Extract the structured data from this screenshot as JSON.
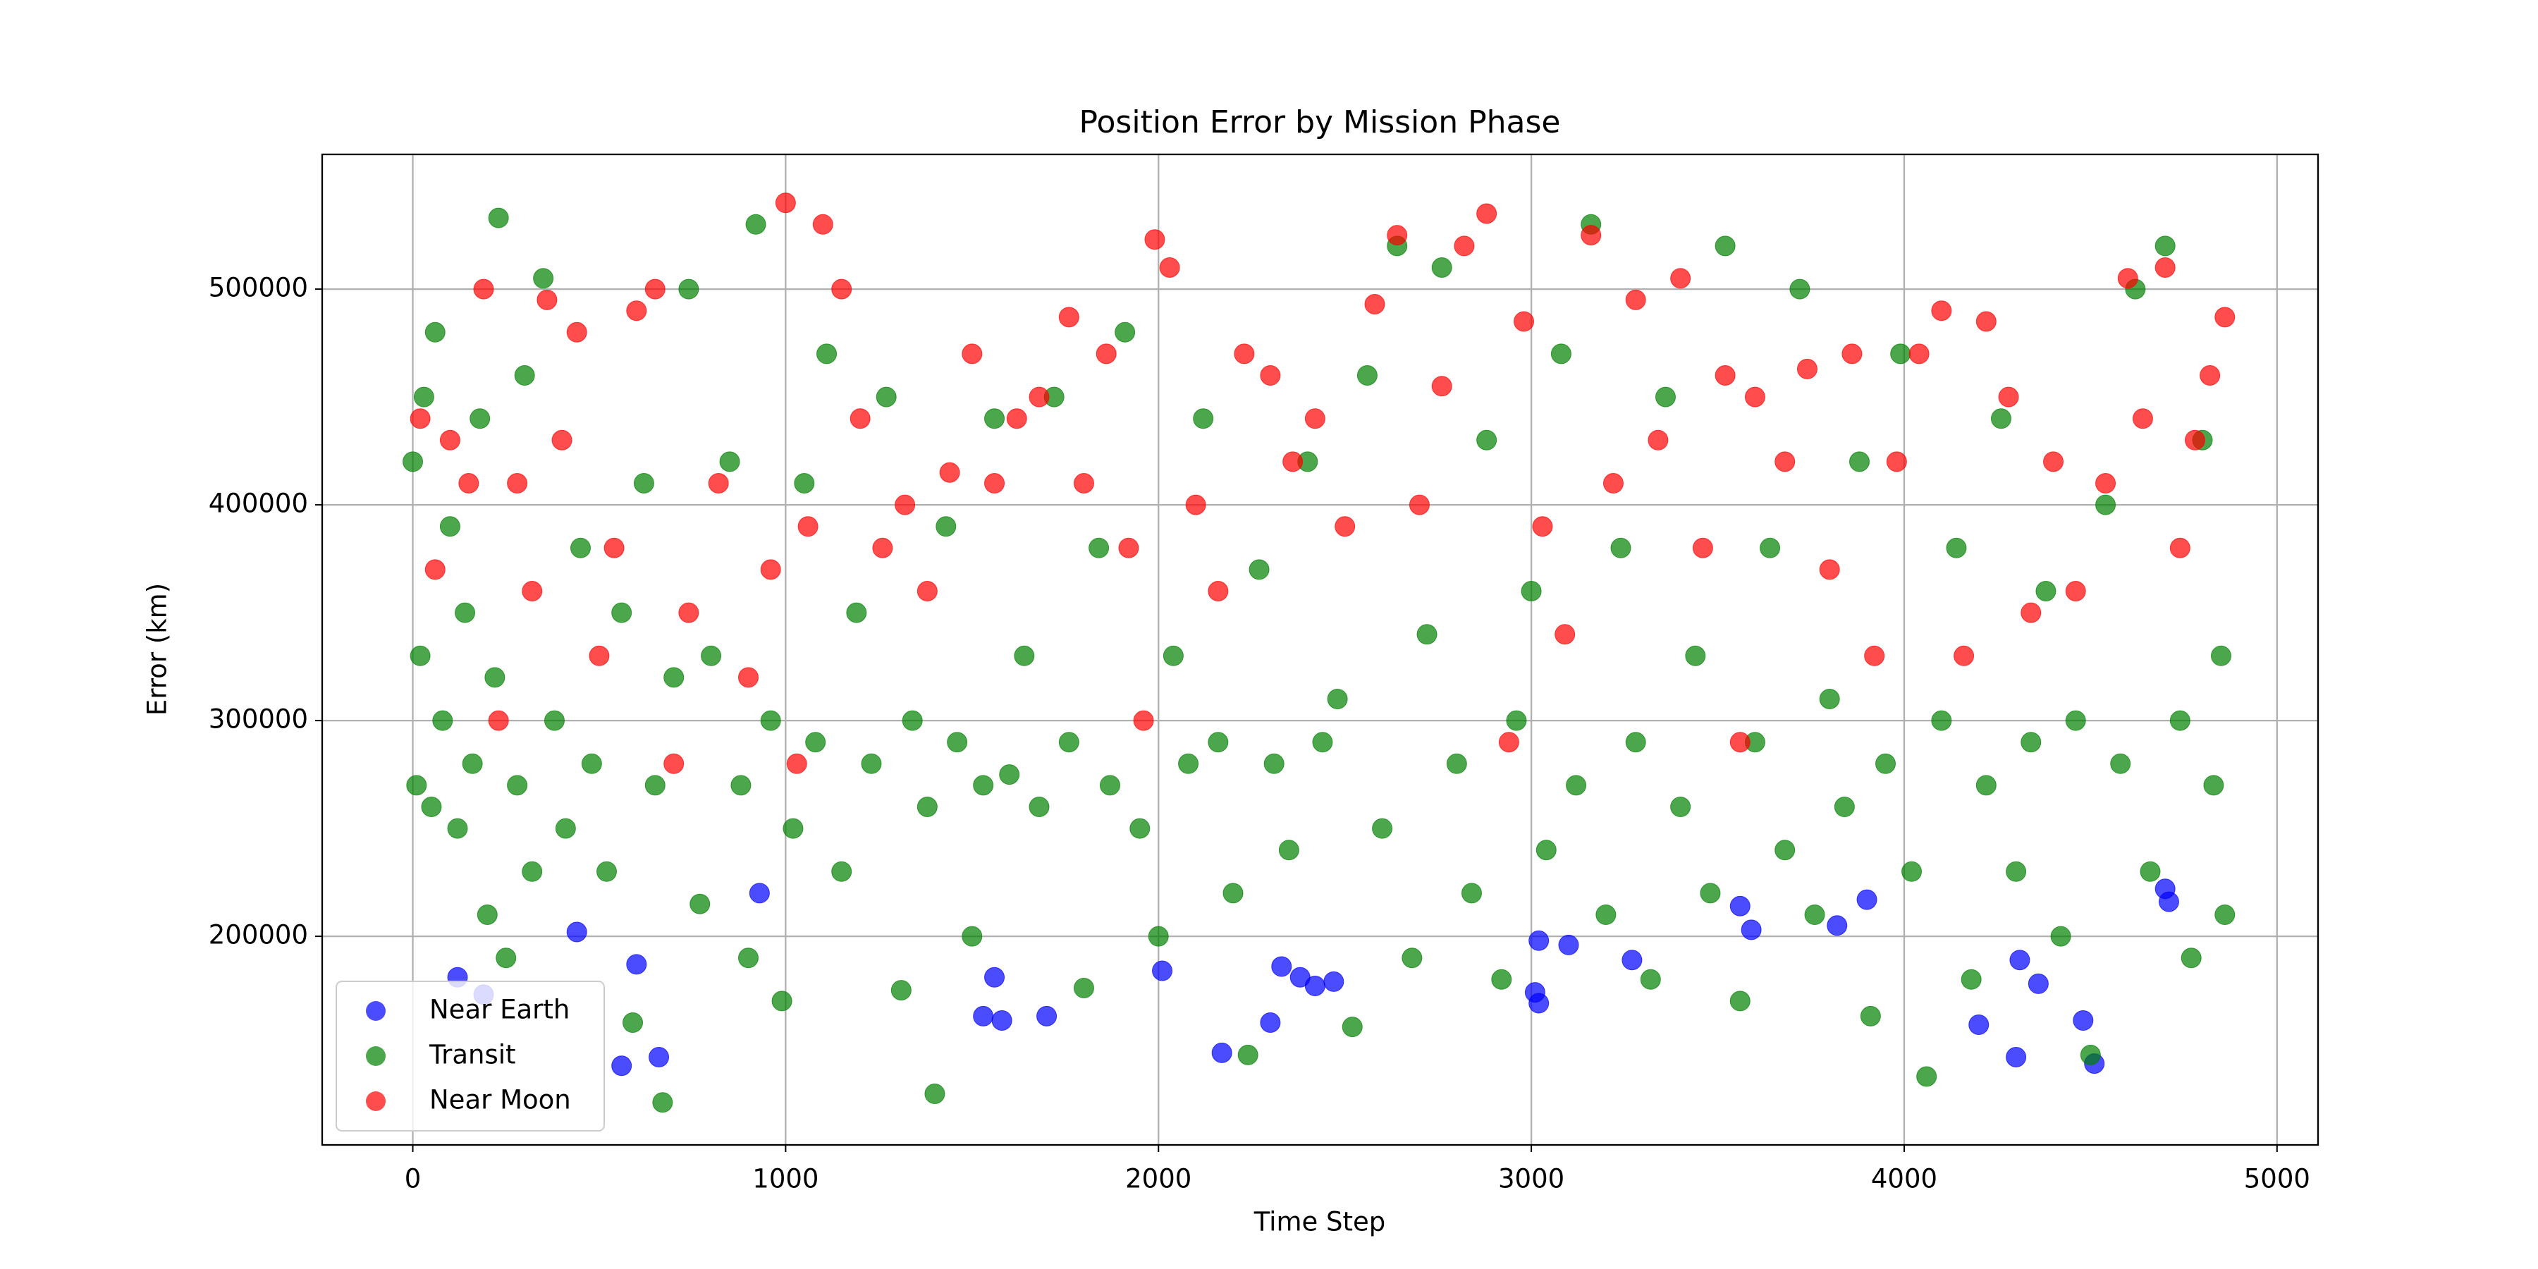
{
  "chart_data": {
    "type": "scatter",
    "title": "Position Error by Mission Phase",
    "x_label": "Time Step",
    "y_label": "Error (km)",
    "xlim": [
      -243,
      5110
    ],
    "ylim": [
      103300,
      562450
    ],
    "xticks": [
      0,
      1000,
      2000,
      3000,
      4000,
      5000
    ],
    "yticks": [
      200000,
      300000,
      400000,
      500000
    ],
    "grid": true,
    "legend": "lower left",
    "series": [
      {
        "name": "Near Earth",
        "color": "#0000ff",
        "x": [
          120,
          190,
          440,
          560,
          600,
          660,
          930,
          1530,
          1560,
          1580,
          1700,
          2010,
          2170,
          2300,
          2330,
          2380,
          2420,
          2470,
          3010,
          3020,
          3020,
          3100,
          3270,
          3560,
          3590,
          3820,
          3900,
          4200,
          4300,
          4310,
          4360,
          4480,
          4510,
          4700,
          4710
        ],
        "values": [
          181000,
          173000,
          202000,
          140000,
          187000,
          144000,
          220000,
          163000,
          181000,
          161000,
          163000,
          184000,
          146000,
          160000,
          186000,
          181000,
          177000,
          179000,
          174000,
          169000,
          198000,
          196000,
          189000,
          214000,
          203000,
          205000,
          217000,
          159000,
          144000,
          189000,
          178000,
          161000,
          141000,
          222000,
          216000
        ]
      },
      {
        "name": "Transit",
        "color": "#008000",
        "x": [
          0,
          10,
          20,
          30,
          50,
          60,
          80,
          100,
          120,
          140,
          160,
          180,
          200,
          220,
          230,
          250,
          280,
          300,
          320,
          350,
          380,
          410,
          450,
          480,
          520,
          560,
          590,
          620,
          650,
          670,
          700,
          740,
          770,
          800,
          850,
          880,
          900,
          920,
          960,
          990,
          1020,
          1050,
          1080,
          1110,
          1150,
          1190,
          1230,
          1270,
          1310,
          1340,
          1380,
          1400,
          1430,
          1460,
          1500,
          1530,
          1560,
          1600,
          1640,
          1680,
          1720,
          1760,
          1800,
          1840,
          1870,
          1910,
          1950,
          2000,
          2040,
          2080,
          2120,
          2160,
          2200,
          2240,
          2270,
          2310,
          2350,
          2400,
          2440,
          2480,
          2520,
          2560,
          2600,
          2640,
          2680,
          2720,
          2760,
          2800,
          2840,
          2880,
          2920,
          2960,
          3000,
          3040,
          3080,
          3120,
          3160,
          3200,
          3240,
          3280,
          3320,
          3360,
          3400,
          3440,
          3480,
          3520,
          3560,
          3600,
          3640,
          3680,
          3720,
          3760,
          3800,
          3840,
          3880,
          3910,
          3950,
          3990,
          4020,
          4060,
          4100,
          4140,
          4180,
          4220,
          4260,
          4300,
          4340,
          4380,
          4420,
          4460,
          4500,
          4540,
          4580,
          4620,
          4660,
          4700,
          4740,
          4770,
          4800,
          4830,
          4850,
          4860
        ],
        "values": [
          420000,
          270000,
          330000,
          450000,
          260000,
          480000,
          300000,
          390000,
          250000,
          350000,
          280000,
          440000,
          210000,
          320000,
          533000,
          190000,
          270000,
          460000,
          230000,
          505000,
          300000,
          250000,
          380000,
          280000,
          230000,
          350000,
          160000,
          410000,
          270000,
          123000,
          320000,
          500000,
          215000,
          330000,
          420000,
          270000,
          190000,
          530000,
          300000,
          170000,
          250000,
          410000,
          290000,
          470000,
          230000,
          350000,
          280000,
          450000,
          175000,
          300000,
          260000,
          127000,
          390000,
          290000,
          200000,
          270000,
          440000,
          275000,
          330000,
          260000,
          450000,
          290000,
          176000,
          380000,
          270000,
          480000,
          250000,
          200000,
          330000,
          280000,
          440000,
          290000,
          220000,
          145000,
          370000,
          280000,
          240000,
          420000,
          290000,
          310000,
          158000,
          460000,
          250000,
          520000,
          190000,
          340000,
          510000,
          280000,
          220000,
          430000,
          180000,
          300000,
          360000,
          240000,
          470000,
          270000,
          530000,
          210000,
          380000,
          290000,
          180000,
          450000,
          260000,
          330000,
          220000,
          520000,
          170000,
          290000,
          380000,
          240000,
          500000,
          210000,
          310000,
          260000,
          420000,
          163000,
          280000,
          470000,
          230000,
          135000,
          300000,
          380000,
          180000,
          270000,
          440000,
          230000,
          290000,
          360000,
          200000,
          300000,
          145000,
          400000,
          280000,
          500000,
          230000,
          520000,
          300000,
          190000,
          430000,
          270000,
          330000,
          210000
        ]
      },
      {
        "name": "Near Moon",
        "color": "#ff0000",
        "x": [
          20,
          60,
          100,
          150,
          190,
          230,
          280,
          320,
          360,
          400,
          440,
          500,
          540,
          600,
          650,
          700,
          740,
          820,
          900,
          960,
          1000,
          1030,
          1060,
          1100,
          1150,
          1200,
          1260,
          1320,
          1380,
          1440,
          1500,
          1560,
          1620,
          1680,
          1760,
          1800,
          1860,
          1920,
          1960,
          1990,
          2030,
          2100,
          2160,
          2230,
          2300,
          2360,
          2420,
          2500,
          2580,
          2640,
          2700,
          2760,
          2820,
          2880,
          2940,
          2980,
          3030,
          3090,
          3160,
          3220,
          3280,
          3340,
          3400,
          3460,
          3520,
          3560,
          3600,
          3680,
          3740,
          3800,
          3860,
          3920,
          3980,
          4040,
          4100,
          4160,
          4220,
          4280,
          4340,
          4400,
          4460,
          4540,
          4600,
          4640,
          4700,
          4740,
          4780,
          4820,
          4860
        ],
        "values": [
          440000,
          370000,
          430000,
          410000,
          500000,
          300000,
          410000,
          360000,
          495000,
          430000,
          480000,
          330000,
          380000,
          490000,
          500000,
          280000,
          350000,
          410000,
          320000,
          370000,
          540000,
          280000,
          390000,
          530000,
          500000,
          440000,
          380000,
          400000,
          360000,
          415000,
          470000,
          410000,
          440000,
          450000,
          487000,
          410000,
          470000,
          380000,
          300000,
          523000,
          510000,
          400000,
          360000,
          470000,
          460000,
          420000,
          440000,
          390000,
          493000,
          525000,
          400000,
          455000,
          520000,
          535000,
          290000,
          485000,
          390000,
          340000,
          525000,
          410000,
          495000,
          430000,
          505000,
          380000,
          460000,
          290000,
          450000,
          420000,
          463000,
          370000,
          470000,
          330000,
          420000,
          470000,
          490000,
          330000,
          485000,
          450000,
          350000,
          420000,
          360000,
          410000,
          505000,
          440000,
          510000,
          380000,
          430000,
          460000,
          487000
        ]
      }
    ]
  }
}
